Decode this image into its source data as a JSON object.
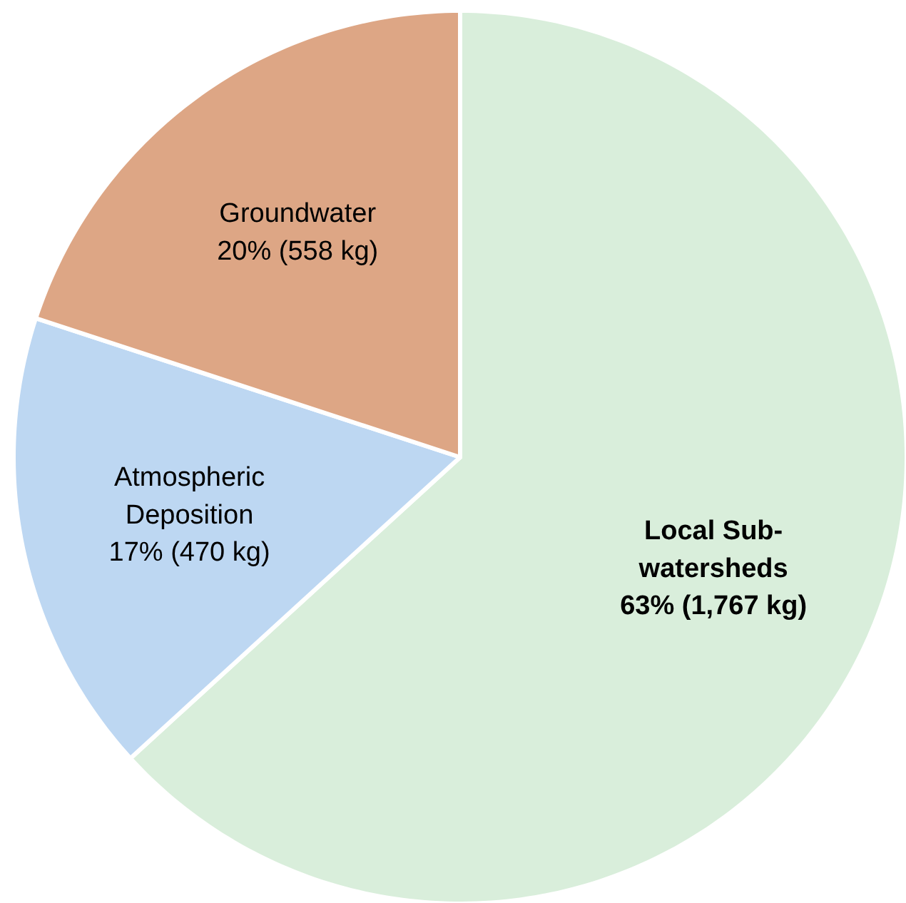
{
  "chart_data": {
    "type": "pie",
    "categories": [
      "Local Sub-watersheds",
      "Atmospheric Deposition",
      "Groundwater"
    ],
    "values": [
      1767,
      470,
      558
    ],
    "value_labels": [
      "63% (1,767 kg)",
      "17% (470 kg)",
      "20% (558 kg)"
    ],
    "colors": [
      "#d9eedb",
      "#bdd7f2",
      "#dda685"
    ]
  }
}
